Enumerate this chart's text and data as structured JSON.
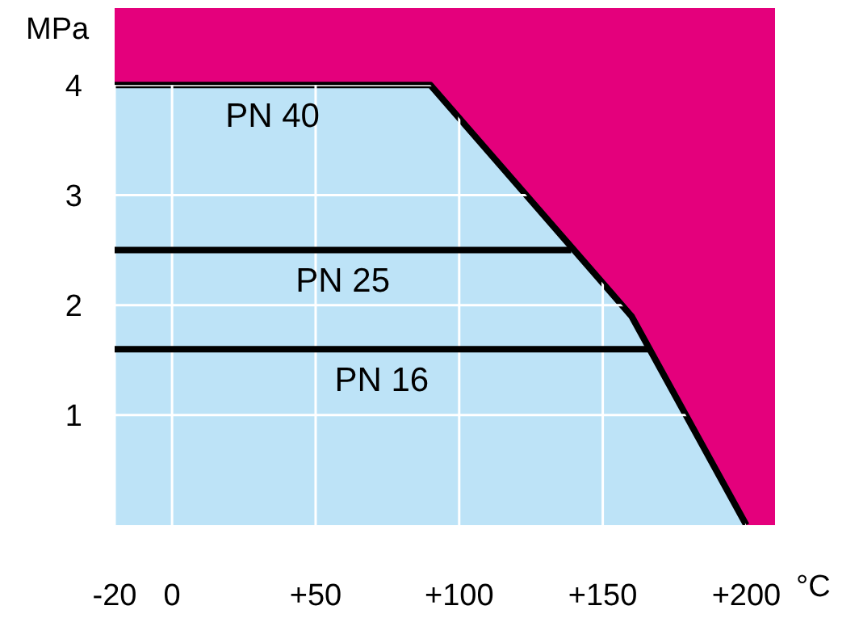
{
  "chart_data": {
    "type": "line",
    "xlabel": "°C",
    "ylabel": "MPa",
    "xlim": [
      -20,
      210
    ],
    "ylim": [
      0,
      4.7
    ],
    "xticks": [
      -20,
      0,
      {
        "value": 50,
        "label": "+50"
      },
      {
        "value": 100,
        "label": "+100"
      },
      {
        "value": 150,
        "label": "+150"
      },
      {
        "value": 200,
        "label": "+200"
      }
    ],
    "yticks": [
      1,
      2,
      3,
      4
    ],
    "grid": true,
    "legend": false,
    "marker": "none",
    "bands": [
      {
        "axis": "y",
        "from": 0,
        "to": 4.7,
        "color": "#e4007c"
      }
    ],
    "series": [
      {
        "name": "PN 40",
        "type": "area",
        "color": "#bde3f7",
        "x": [
          -20,
          90,
          160,
          200
        ],
        "values": [
          4,
          4,
          1.9,
          0
        ]
      },
      {
        "name": "PN 25",
        "color": "#000000",
        "x": [
          -20,
          139
        ],
        "values": [
          2.5,
          2.5
        ]
      },
      {
        "name": "PN 16",
        "color": "#000000",
        "x": [
          -20,
          166
        ],
        "values": [
          1.6,
          1.6
        ]
      }
    ]
  }
}
